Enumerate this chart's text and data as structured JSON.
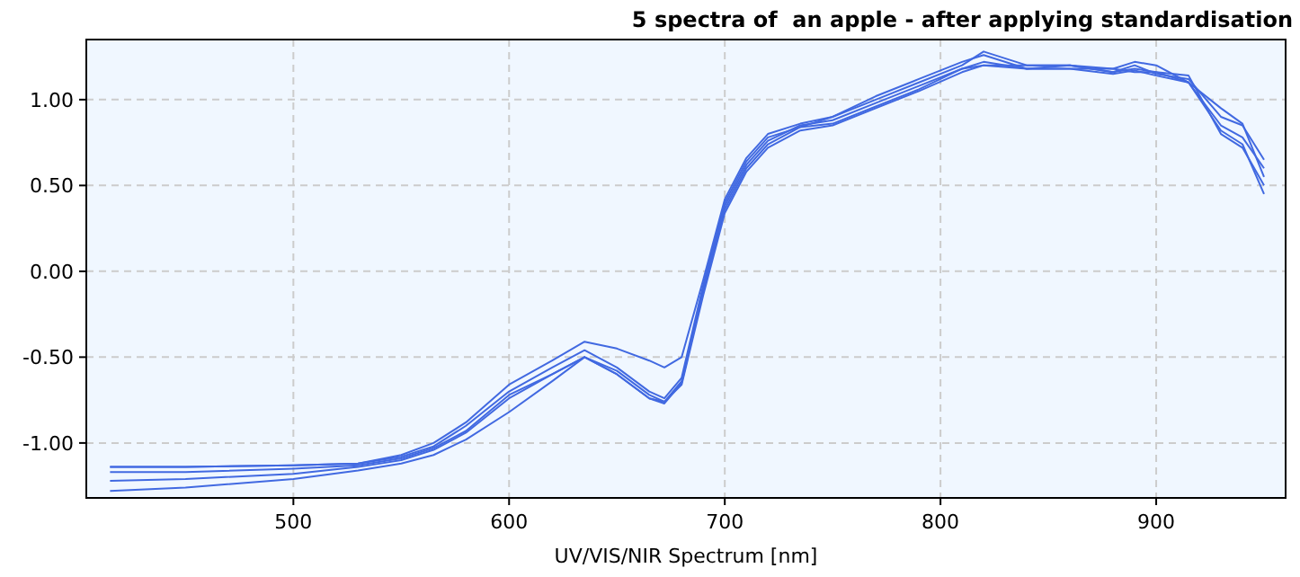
{
  "chart_data": {
    "type": "line",
    "title": "5 spectra of  an apple - after applying standardisation",
    "xlabel": "UV/VIS/NIR Spectrum [nm]",
    "x": [
      415,
      450,
      500,
      530,
      550,
      565,
      580,
      600,
      620,
      635,
      650,
      665,
      672,
      680,
      690,
      700,
      710,
      720,
      735,
      750,
      770,
      790,
      810,
      820,
      840,
      860,
      880,
      890,
      900,
      915,
      930,
      940,
      950
    ],
    "xlim": [
      404,
      960
    ],
    "xticks": [
      500,
      600,
      700,
      800,
      900
    ],
    "ylim": [
      -1.32,
      1.35
    ],
    "yticks": [
      {
        "value": -1,
        "label": "-1.00"
      },
      {
        "value": -0.5,
        "label": "-0.50"
      },
      {
        "value": 0,
        "label": "0.00"
      },
      {
        "value": 0.5,
        "label": "0.50"
      },
      {
        "value": 1,
        "label": "1.00"
      }
    ],
    "grid": true,
    "marker": "none",
    "line_style": "solid",
    "series": [
      {
        "color": "#4169e1",
        "values": [
          -1.14,
          -1.14,
          -1.13,
          -1.12,
          -1.07,
          -1.0,
          -0.88,
          -0.66,
          -0.52,
          -0.41,
          -0.45,
          -0.52,
          -0.56,
          -0.5,
          -0.05,
          0.42,
          0.66,
          0.8,
          0.86,
          0.9,
          1.02,
          1.12,
          1.22,
          1.26,
          1.18,
          1.2,
          1.16,
          1.2,
          1.15,
          1.12,
          0.9,
          0.85,
          0.65
        ]
      },
      {
        "color": "#4169e1",
        "values": [
          -1.14,
          -1.14,
          -1.13,
          -1.12,
          -1.08,
          -1.02,
          -0.9,
          -0.7,
          -0.56,
          -0.46,
          -0.56,
          -0.7,
          -0.74,
          -0.62,
          -0.08,
          0.4,
          0.64,
          0.78,
          0.84,
          0.9,
          1.0,
          1.1,
          1.2,
          1.28,
          1.2,
          1.2,
          1.18,
          1.22,
          1.2,
          1.1,
          0.85,
          0.78,
          0.6
        ]
      },
      {
        "color": "#4169e1",
        "values": [
          -1.17,
          -1.17,
          -1.15,
          -1.13,
          -1.09,
          -1.03,
          -0.93,
          -0.72,
          -0.6,
          -0.5,
          -0.58,
          -0.72,
          -0.76,
          -0.64,
          -0.1,
          0.38,
          0.62,
          0.76,
          0.85,
          0.88,
          0.98,
          1.08,
          1.18,
          1.22,
          1.18,
          1.18,
          1.18,
          1.16,
          1.16,
          1.1,
          0.95,
          0.86,
          0.55
        ]
      },
      {
        "color": "#4169e1",
        "values": [
          -1.22,
          -1.21,
          -1.18,
          -1.14,
          -1.1,
          -1.04,
          -0.94,
          -0.74,
          -0.6,
          -0.5,
          -0.6,
          -0.74,
          -0.77,
          -0.65,
          -0.12,
          0.36,
          0.6,
          0.74,
          0.84,
          0.86,
          0.96,
          1.06,
          1.18,
          1.2,
          1.2,
          1.2,
          1.16,
          1.18,
          1.16,
          1.14,
          0.8,
          0.72,
          0.5
        ]
      },
      {
        "color": "#4169e1",
        "values": [
          -1.28,
          -1.26,
          -1.21,
          -1.16,
          -1.12,
          -1.07,
          -0.98,
          -0.82,
          -0.64,
          -0.5,
          -0.6,
          -0.74,
          -0.76,
          -0.66,
          -0.14,
          0.34,
          0.58,
          0.72,
          0.82,
          0.85,
          0.95,
          1.05,
          1.16,
          1.2,
          1.18,
          1.18,
          1.15,
          1.17,
          1.14,
          1.1,
          0.82,
          0.74,
          0.45
        ]
      }
    ]
  }
}
